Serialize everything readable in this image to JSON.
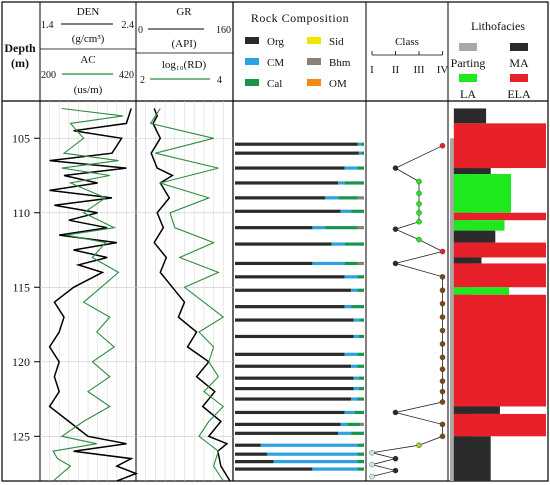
{
  "header": {
    "depth_title": "Depth",
    "depth_unit": "(m)",
    "den": {
      "name": "DEN",
      "unit": "(g/cm³)",
      "min": "1.4",
      "max": "2.4"
    },
    "ac": {
      "name": "AC",
      "unit": "(us/m)",
      "min": "200",
      "max": "420"
    },
    "gr": {
      "name": "GR",
      "unit": "(API)",
      "min": "0",
      "max": "160"
    },
    "rd": {
      "name": "log₁₀(RD)",
      "min": "2",
      "max": "4"
    },
    "rock_title": "Rock Composition",
    "class_title": "Class",
    "litho_title": "Lithofacies"
  },
  "rock_legend": [
    {
      "key": "Org",
      "label": "Org",
      "color": "#2b2b2b"
    },
    {
      "key": "Sid",
      "label": "Sid",
      "color": "#f2e600"
    },
    {
      "key": "CM",
      "label": "CM",
      "color": "#2aa2e3"
    },
    {
      "key": "Bhm",
      "label": "Bhm",
      "color": "#8c7f78"
    },
    {
      "key": "Cal",
      "label": "Cal",
      "color": "#17954a"
    },
    {
      "key": "OM",
      "label": "OM",
      "color": "#f08a14"
    }
  ],
  "class_ticks": [
    "I",
    "II",
    "III",
    "IV"
  ],
  "litho_legend": [
    {
      "label": "Parting",
      "color": "#a8a8a8"
    },
    {
      "label": "MA",
      "color": "#2b2b2b"
    },
    {
      "label": "LA",
      "color": "#1ee81e"
    },
    {
      "label": "ELA",
      "color": "#e8202a"
    }
  ],
  "chart_data": {
    "type": "well-log",
    "depth_ticks": [
      105,
      110,
      115,
      120,
      125
    ],
    "depth_range": [
      102.5,
      128
    ],
    "tracks": {
      "DEN": {
        "range": [
          1.4,
          2.4
        ],
        "color": "#000000",
        "depth": [
          103.0,
          104.0,
          104.5,
          105.0,
          106.0,
          106.5,
          107.0,
          107.5,
          108.0,
          108.5,
          109.0,
          109.5,
          110.0,
          110.5,
          111.0,
          111.5,
          112.0,
          112.5,
          113.0,
          113.5,
          114.0,
          115.0,
          116.0,
          117.0,
          118.0,
          119.0,
          120.0,
          121.0,
          122.0,
          123.0,
          124.0,
          125.0,
          125.5,
          126.0,
          126.5,
          127.0,
          127.5,
          128.0
        ],
        "value": [
          2.35,
          2.3,
          1.75,
          2.25,
          2.15,
          1.5,
          2.3,
          1.65,
          2.0,
          1.5,
          2.15,
          1.55,
          2.0,
          1.7,
          2.1,
          1.6,
          2.2,
          1.75,
          2.1,
          1.8,
          2.05,
          1.75,
          1.55,
          1.65,
          1.6,
          1.5,
          1.6,
          1.55,
          1.6,
          1.5,
          1.7,
          1.9,
          2.3,
          1.75,
          2.35,
          2.2,
          2.4,
          2.2
        ]
      },
      "AC": {
        "range": [
          200,
          420
        ],
        "color": "#2e8b3f",
        "depth": [
          103.0,
          103.5,
          104.0,
          105.0,
          106.0,
          106.5,
          107.0,
          107.5,
          108.0,
          109.0,
          110.0,
          111.0,
          111.5,
          112.0,
          113.0,
          114.0,
          115.0,
          116.0,
          117.0,
          118.0,
          119.0,
          120.0,
          121.0,
          122.0,
          123.0,
          124.0,
          125.0,
          125.5,
          126.0,
          126.5,
          127.0,
          128.0
        ],
        "value": [
          250,
          390,
          270,
          300,
          255,
          380,
          250,
          360,
          270,
          350,
          300,
          370,
          260,
          350,
          320,
          380,
          340,
          300,
          360,
          330,
          370,
          320,
          360,
          310,
          360,
          300,
          250,
          330,
          230,
          240,
          270,
          230
        ]
      },
      "GR": {
        "range": [
          0,
          160
        ],
        "color": "#000000",
        "depth": [
          103.0,
          103.5,
          104.0,
          105.0,
          106.0,
          107.0,
          107.5,
          108.0,
          109.0,
          110.0,
          111.0,
          112.0,
          113.0,
          114.0,
          115.0,
          116.0,
          117.0,
          118.0,
          119.0,
          120.0,
          121.0,
          122.0,
          123.0,
          124.0,
          125.0,
          125.5,
          126.0,
          127.0,
          128.0
        ],
        "value": [
          30,
          35,
          28,
          40,
          25,
          35,
          60,
          40,
          55,
          35,
          45,
          30,
          50,
          40,
          60,
          80,
          70,
          100,
          85,
          120,
          100,
          130,
          110,
          140,
          120,
          150,
          135,
          140,
          155
        ]
      },
      "RD": {
        "range": [
          2,
          4
        ],
        "color": "#2e8b3f",
        "depth": [
          103.0,
          104.0,
          105.0,
          106.0,
          107.0,
          108.0,
          109.0,
          110.0,
          111.0,
          112.0,
          113.0,
          114.0,
          115.0,
          116.0,
          117.0,
          118.0,
          119.0,
          120.0,
          121.0,
          122.0,
          123.0,
          124.0,
          125.0,
          126.0,
          127.0,
          128.0
        ],
        "value": [
          2.5,
          2.3,
          3.6,
          2.4,
          3.7,
          2.5,
          3.5,
          2.7,
          2.8,
          3.6,
          2.9,
          3.7,
          3.0,
          3.4,
          3.8,
          3.3,
          3.6,
          3.5,
          3.7,
          3.4,
          3.8,
          3.5,
          3.3,
          3.7,
          3.6,
          3.8
        ]
      }
    },
    "rock_composition": {
      "order": [
        "Org",
        "CM",
        "Cal",
        "Bhm",
        "Sid",
        "OM"
      ],
      "rows": [
        {
          "depth": 105.4,
          "Org": 95,
          "CM": 3,
          "Cal": 2
        },
        {
          "depth": 106.0,
          "Org": 96,
          "CM": 2,
          "Cal": 2
        },
        {
          "depth": 107.0,
          "Org": 85,
          "CM": 10,
          "Cal": 5
        },
        {
          "depth": 108.0,
          "Org": 80,
          "CM": 5,
          "Cal": 15
        },
        {
          "depth": 109.0,
          "Org": 70,
          "CM": 10,
          "Cal": 15,
          "Bhm": 5
        },
        {
          "depth": 109.9,
          "Org": 82,
          "CM": 8,
          "Cal": 10
        },
        {
          "depth": 111.0,
          "Org": 60,
          "CM": 10,
          "Cal": 25,
          "Bhm": 5
        },
        {
          "depth": 112.1,
          "Org": 75,
          "CM": 10,
          "Cal": 15
        },
        {
          "depth": 113.4,
          "Org": 60,
          "CM": 25,
          "Cal": 10,
          "Bhm": 5
        },
        {
          "depth": 114.3,
          "Org": 85,
          "CM": 10,
          "Cal": 5
        },
        {
          "depth": 115.2,
          "Org": 90,
          "CM": 5,
          "Cal": 5
        },
        {
          "depth": 116.3,
          "Org": 85,
          "CM": 5,
          "Cal": 10
        },
        {
          "depth": 117.2,
          "Org": 92,
          "CM": 5,
          "Cal": 3
        },
        {
          "depth": 118.3,
          "Org": 92,
          "CM": 4,
          "Cal": 4
        },
        {
          "depth": 119.5,
          "Org": 85,
          "CM": 10,
          "Cal": 5
        },
        {
          "depth": 120.3,
          "Org": 90,
          "CM": 5,
          "Cal": 5
        },
        {
          "depth": 121.1,
          "Org": 92,
          "CM": 4,
          "Cal": 4
        },
        {
          "depth": 121.8,
          "Org": 92,
          "CM": 4,
          "Cal": 4
        },
        {
          "depth": 122.5,
          "Org": 90,
          "CM": 5,
          "Cal": 5
        },
        {
          "depth": 123.4,
          "Org": 85,
          "CM": 8,
          "Cal": 7
        },
        {
          "depth": 124.2,
          "Org": 82,
          "CM": 5,
          "Cal": 10,
          "Bhm": 3
        },
        {
          "depth": 124.8,
          "Org": 80,
          "CM": 10,
          "Cal": 10
        },
        {
          "depth": 125.6,
          "Org": 20,
          "CM": 75,
          "Cal": 5
        },
        {
          "depth": 126.2,
          "Org": 25,
          "CM": 70,
          "Cal": 5
        },
        {
          "depth": 126.7,
          "Org": 30,
          "CM": 65,
          "Cal": 5
        },
        {
          "depth": 127.2,
          "Org": 60,
          "CM": 35,
          "Cal": 5
        }
      ]
    },
    "class_points": [
      {
        "depth": 105.5,
        "class": 4,
        "color": "#e8202a"
      },
      {
        "depth": 107.0,
        "class": 2,
        "color": "#2b2b2b"
      },
      {
        "depth": 107.9,
        "class": 3,
        "color": "#1ee81e"
      },
      {
        "depth": 108.7,
        "class": 3,
        "color": "#1ee81e"
      },
      {
        "depth": 109.4,
        "class": 3,
        "color": "#1ee81e"
      },
      {
        "depth": 110.0,
        "class": 3,
        "color": "#1ee81e"
      },
      {
        "depth": 110.6,
        "class": 3,
        "color": "#1ee81e"
      },
      {
        "depth": 111.1,
        "class": 2,
        "color": "#2b2b2b"
      },
      {
        "depth": 111.8,
        "class": 3,
        "color": "#1ee81e"
      },
      {
        "depth": 112.6,
        "class": 4,
        "color": "#e8202a"
      },
      {
        "depth": 113.4,
        "class": 2,
        "color": "#2b2b2b"
      },
      {
        "depth": 114.3,
        "class": 4,
        "color": "#7a4a16"
      },
      {
        "depth": 115.2,
        "class": 4,
        "color": "#7a4a16"
      },
      {
        "depth": 116.1,
        "class": 4,
        "color": "#7a4a16"
      },
      {
        "depth": 117.0,
        "class": 4,
        "color": "#7a4a16"
      },
      {
        "depth": 117.9,
        "class": 4,
        "color": "#7a4a16"
      },
      {
        "depth": 118.8,
        "class": 4,
        "color": "#7a4a16"
      },
      {
        "depth": 119.7,
        "class": 4,
        "color": "#7a4a16"
      },
      {
        "depth": 120.5,
        "class": 4,
        "color": "#7a4a16"
      },
      {
        "depth": 121.3,
        "class": 4,
        "color": "#7a4a16"
      },
      {
        "depth": 122.0,
        "class": 4,
        "color": "#7a4a16"
      },
      {
        "depth": 122.7,
        "class": 4,
        "color": "#7a4a16"
      },
      {
        "depth": 123.4,
        "class": 2,
        "color": "#2b2b2b"
      },
      {
        "depth": 124.2,
        "class": 4,
        "color": "#7a4a16"
      },
      {
        "depth": 125.0,
        "class": 4,
        "color": "#7a4a16"
      },
      {
        "depth": 125.6,
        "class": 3,
        "color": "#9acd32"
      },
      {
        "depth": 126.1,
        "class": 1,
        "color": "#c8e6e0"
      },
      {
        "depth": 126.5,
        "class": 2,
        "color": "#2b2b2b"
      },
      {
        "depth": 126.9,
        "class": 1,
        "color": "#c8e6e0"
      },
      {
        "depth": 127.3,
        "class": 2,
        "color": "#2b2b2b"
      },
      {
        "depth": 127.7,
        "class": 1,
        "color": "#c8e6e0"
      }
    ],
    "lithofacies": [
      {
        "top": 103.0,
        "bottom": 104.0,
        "facies": "MA",
        "extent": 0.35
      },
      {
        "top": 104.0,
        "bottom": 107.0,
        "facies": "ELA",
        "extent": 1.0
      },
      {
        "top": 107.0,
        "bottom": 107.4,
        "facies": "MA",
        "extent": 0.4
      },
      {
        "top": 107.4,
        "bottom": 110.0,
        "facies": "LA",
        "extent": 0.62
      },
      {
        "top": 110.0,
        "bottom": 110.5,
        "facies": "ELA",
        "extent": 1.0
      },
      {
        "top": 110.5,
        "bottom": 111.2,
        "facies": "LA",
        "extent": 0.55
      },
      {
        "top": 111.2,
        "bottom": 112.0,
        "facies": "MA",
        "extent": 0.45
      },
      {
        "top": 112.0,
        "bottom": 113.0,
        "facies": "ELA",
        "extent": 1.0
      },
      {
        "top": 113.0,
        "bottom": 113.4,
        "facies": "MA",
        "extent": 0.3
      },
      {
        "top": 113.4,
        "bottom": 115.0,
        "facies": "ELA",
        "extent": 1.0
      },
      {
        "top": 115.0,
        "bottom": 115.5,
        "facies": "LA",
        "extent": 0.6
      },
      {
        "top": 115.5,
        "bottom": 123.0,
        "facies": "ELA",
        "extent": 1.0
      },
      {
        "top": 123.0,
        "bottom": 123.5,
        "facies": "MA",
        "extent": 0.5
      },
      {
        "top": 123.5,
        "bottom": 125.0,
        "facies": "ELA",
        "extent": 1.0
      },
      {
        "top": 125.0,
        "bottom": 128.0,
        "facies": "MA",
        "extent": 0.4
      }
    ],
    "parting": [
      {
        "top": 105.0,
        "bottom": 128.0,
        "extent": 0.23
      }
    ]
  }
}
